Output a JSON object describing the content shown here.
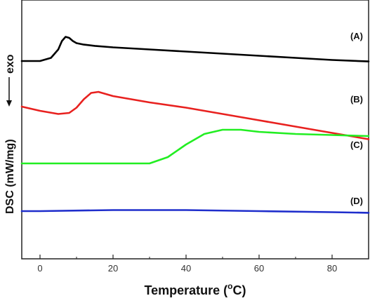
{
  "chart_data": {
    "type": "line",
    "xlabel_main": "Temperature (",
    "xlabel_sup": "o",
    "xlabel_end": "C)",
    "ylabel": "DSC (mW/mg)",
    "exo_label": "exo",
    "xlim": [
      -5,
      90
    ],
    "xticks": [
      0,
      20,
      40,
      60,
      80
    ],
    "yticks_shown": false,
    "series": [
      {
        "name": "(A)",
        "color": "#000000",
        "x": [
          -5,
          0,
          3,
          5,
          6,
          7,
          8,
          9,
          10,
          12,
          15,
          20,
          30,
          40,
          50,
          60,
          70,
          80,
          90
        ],
        "y": [
          -0.6,
          -0.6,
          -0.45,
          -0.05,
          0.35,
          0.55,
          0.5,
          0.35,
          0.25,
          0.18,
          0.12,
          0.05,
          -0.05,
          -0.15,
          -0.25,
          -0.35,
          -0.45,
          -0.55,
          -0.62
        ]
      },
      {
        "name": "(B)",
        "color": "#e8211f",
        "x": [
          -5,
          0,
          5,
          8,
          10,
          12,
          14,
          16,
          18,
          20,
          30,
          40,
          50,
          60,
          70,
          80,
          90
        ],
        "y": [
          -0.2,
          -0.4,
          -0.55,
          -0.5,
          -0.25,
          0.15,
          0.45,
          0.5,
          0.4,
          0.3,
          0.0,
          -0.25,
          -0.55,
          -0.85,
          -1.15,
          -1.45,
          -1.75
        ]
      },
      {
        "name": "(C)",
        "color": "#22ee22",
        "x": [
          -5,
          0,
          10,
          20,
          25,
          30,
          35,
          40,
          45,
          50,
          55,
          60,
          70,
          80,
          90
        ],
        "y": [
          0.0,
          0.0,
          0.0,
          0.0,
          0.0,
          0.0,
          0.3,
          0.9,
          1.4,
          1.6,
          1.6,
          1.5,
          1.4,
          1.35,
          1.3
        ]
      },
      {
        "name": "(D)",
        "color": "#1f2ecc",
        "x": [
          -5,
          0,
          20,
          40,
          60,
          80,
          90
        ],
        "y": [
          0.0,
          0.0,
          0.05,
          0.05,
          0.0,
          -0.05,
          -0.08
        ]
      }
    ]
  }
}
